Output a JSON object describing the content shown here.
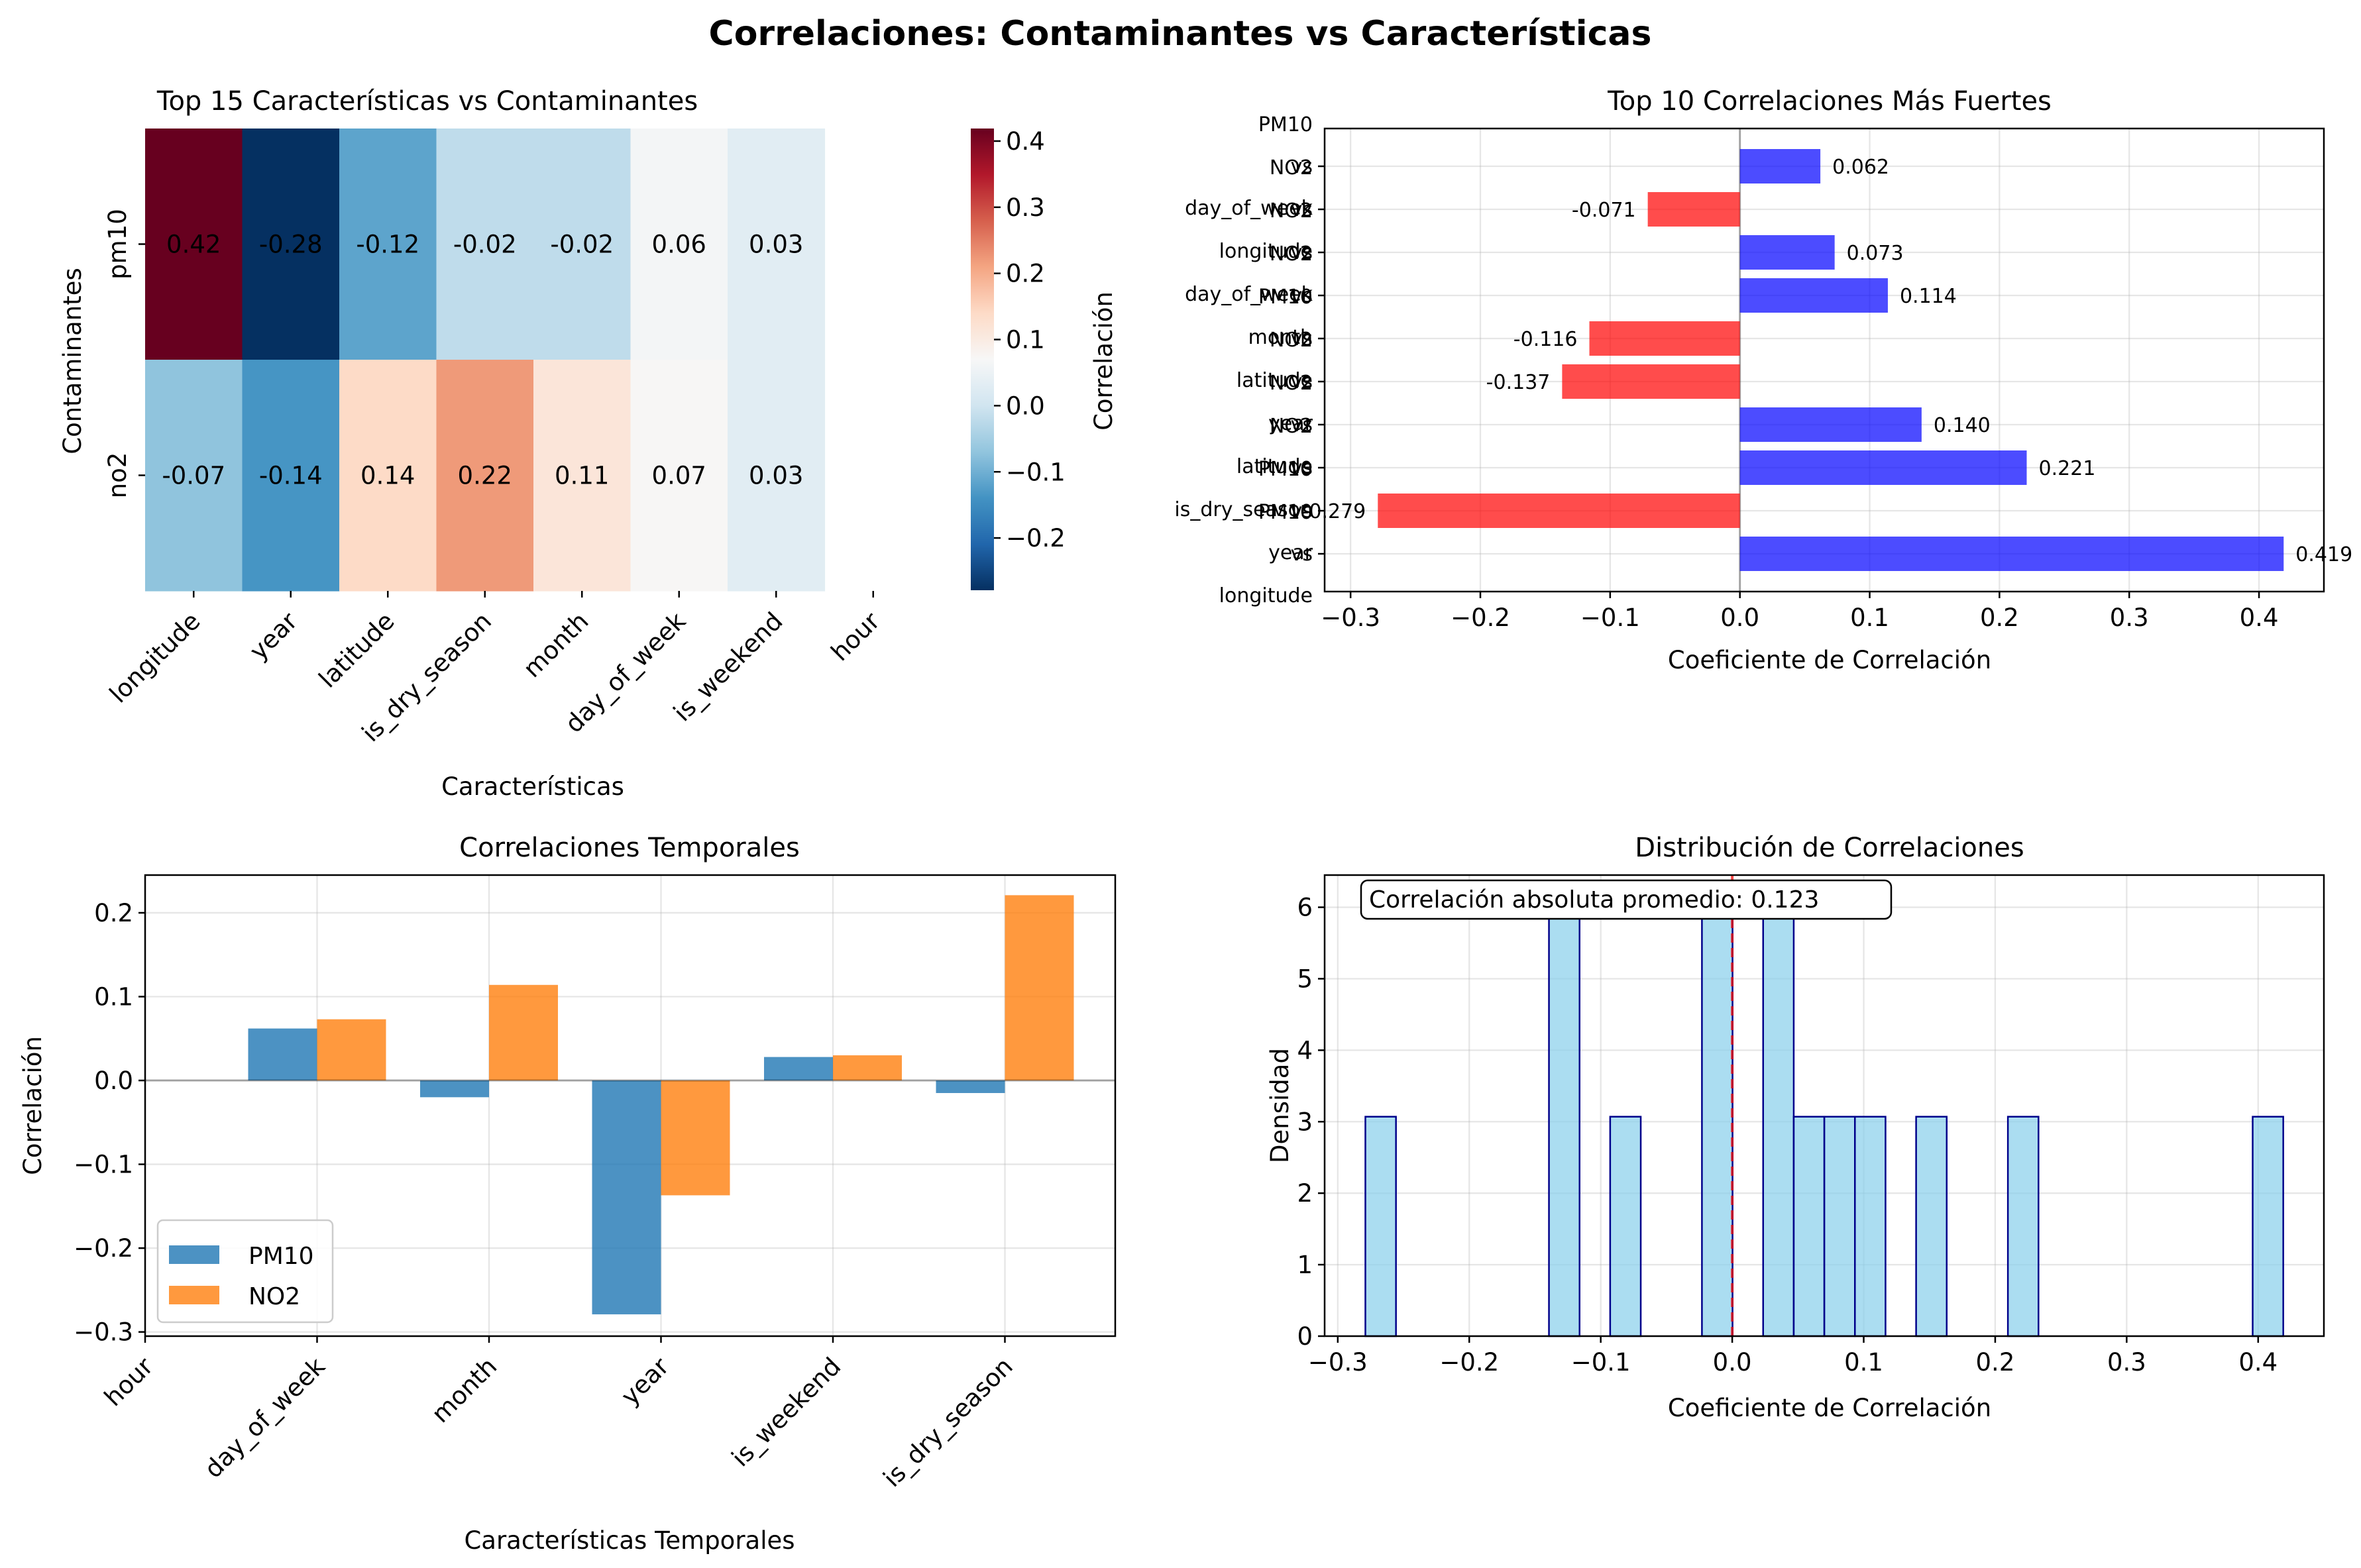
{
  "suptitle": "Correlaciones: Contaminantes vs Características",
  "colors": {
    "pm10": "#1f77b4",
    "no2": "#ff7f0e",
    "positive_bar": "#0000ff",
    "negative_bar": "#ff0000",
    "histogram_fill": "#87ceeb",
    "histogram_edge": "#00008b",
    "mean_line": "#ff0000"
  },
  "chart_data": [
    {
      "type": "heatmap",
      "title": "Top 15 Características vs Contaminantes",
      "xlabel": "Características",
      "ylabel": "Contaminantes",
      "x_categories": [
        "longitude",
        "year",
        "latitude",
        "is_dry_season",
        "month",
        "day_of_week",
        "is_weekend",
        "hour"
      ],
      "y_categories": [
        "pm10",
        "no2"
      ],
      "values": [
        [
          0.419,
          -0.279,
          -0.116,
          -0.02,
          -0.02,
          0.062,
          0.03,
          null
        ],
        [
          -0.071,
          -0.137,
          0.14,
          0.221,
          0.114,
          0.073,
          0.03,
          null
        ]
      ],
      "annotations": [
        [
          "0.42",
          "-0.28",
          "-0.12",
          "-0.02",
          "-0.02",
          "0.06",
          "0.03",
          ""
        ],
        [
          "-0.07",
          "-0.14",
          "0.14",
          "0.22",
          "0.11",
          "0.07",
          "0.03",
          ""
        ]
      ],
      "colormap": "RdBu_r",
      "vmin": -0.279,
      "vmax": 0.419,
      "colorbar_label": "Correlación",
      "colorbar_ticks": [
        "0.4",
        "0.3",
        "0.2",
        "0.1",
        "0.0",
        "−0.1",
        "−0.2"
      ],
      "colorbar_tick_values": [
        0.4,
        0.3,
        0.2,
        0.1,
        0.0,
        -0.1,
        -0.2
      ]
    },
    {
      "type": "bar",
      "orientation": "horizontal",
      "title": "Top 10 Correlaciones Más Fuertes",
      "xlabel": "Coeficiente de Correlación",
      "xlim": [
        -0.32,
        0.45
      ],
      "xticks": [
        -0.3,
        -0.2,
        -0.1,
        0.0,
        0.1,
        0.2,
        0.3,
        0.4
      ],
      "xtick_labels": [
        "−0.3",
        "−0.2",
        "−0.1",
        "0.0",
        "0.1",
        "0.2",
        "0.3",
        "0.4"
      ],
      "grid": true,
      "bars": [
        {
          "label": [
            "PM10",
            "vs",
            "longitude"
          ],
          "value": 0.419,
          "value_label": "0.419"
        },
        {
          "label": [
            "PM10",
            "vs",
            "year"
          ],
          "value": -0.279,
          "value_label": "-0.279"
        },
        {
          "label": [
            "NO2",
            "vs",
            "is_dry_season"
          ],
          "value": 0.221,
          "value_label": "0.221"
        },
        {
          "label": [
            "NO2",
            "vs",
            "latitude"
          ],
          "value": 0.14,
          "value_label": "0.140"
        },
        {
          "label": [
            "NO2",
            "vs",
            "year"
          ],
          "value": -0.137,
          "value_label": "-0.137"
        },
        {
          "label": [
            "PM10",
            "vs",
            "latitude"
          ],
          "value": -0.116,
          "value_label": "-0.116"
        },
        {
          "label": [
            "NO2",
            "vs",
            "month"
          ],
          "value": 0.114,
          "value_label": "0.114"
        },
        {
          "label": [
            "NO2",
            "vs",
            "day_of_week"
          ],
          "value": 0.073,
          "value_label": "0.073"
        },
        {
          "label": [
            "NO2",
            "vs",
            "longitude"
          ],
          "value": -0.071,
          "value_label": "-0.071"
        },
        {
          "label": [
            "PM10",
            "vs",
            "day_of_week"
          ],
          "value": 0.062,
          "value_label": "0.062"
        }
      ]
    },
    {
      "type": "bar",
      "title": "Correlaciones Temporales",
      "xlabel": "Características Temporales",
      "ylabel": "Correlación",
      "categories": [
        "hour",
        "day_of_week",
        "month",
        "year",
        "is_weekend",
        "is_dry_season"
      ],
      "series": [
        {
          "name": "PM10",
          "values": [
            null,
            0.062,
            -0.02,
            -0.279,
            0.028,
            -0.015
          ]
        },
        {
          "name": "NO2",
          "values": [
            null,
            0.073,
            0.114,
            -0.137,
            0.03,
            0.221
          ]
        }
      ],
      "ylim": [
        -0.305,
        0.245
      ],
      "yticks": [
        0.2,
        0.1,
        0.0,
        -0.1,
        -0.2,
        -0.3
      ],
      "ytick_labels": [
        "0.2",
        "0.1",
        "0.0",
        "−0.1",
        "−0.2",
        "−0.3"
      ],
      "legend_placement": "lower-left",
      "grid": true
    },
    {
      "type": "bar",
      "subtype": "histogram",
      "title": "Distribución de Correlaciones",
      "xlabel": "Coeficiente de Correlación",
      "ylabel": "Densidad",
      "xlim": [
        -0.31,
        0.45
      ],
      "ylim": [
        0,
        6.45
      ],
      "xticks": [
        -0.3,
        -0.2,
        -0.1,
        0.0,
        0.1,
        0.2,
        0.3,
        0.4
      ],
      "xtick_labels": [
        "−0.3",
        "−0.2",
        "−0.1",
        "0.0",
        "0.1",
        "0.2",
        "0.3",
        "0.4"
      ],
      "yticks": [
        0,
        1,
        2,
        3,
        4,
        5,
        6
      ],
      "ytick_labels": [
        "0",
        "1",
        "2",
        "3",
        "4",
        "5",
        "6"
      ],
      "bin_start": -0.279,
      "bin_width": 0.02327,
      "densities": [
        3.07,
        0,
        0,
        0,
        0,
        0,
        6.14,
        0,
        3.07,
        0,
        0,
        6.14,
        0,
        6.14,
        3.07,
        3.07,
        3.07,
        0,
        3.07,
        0,
        0,
        3.07,
        0,
        0,
        0,
        0,
        0,
        0,
        0,
        3.07
      ],
      "mean_line_x": 0.0,
      "annotation": "Correlación absoluta promedio: 0.123",
      "grid": true
    }
  ]
}
